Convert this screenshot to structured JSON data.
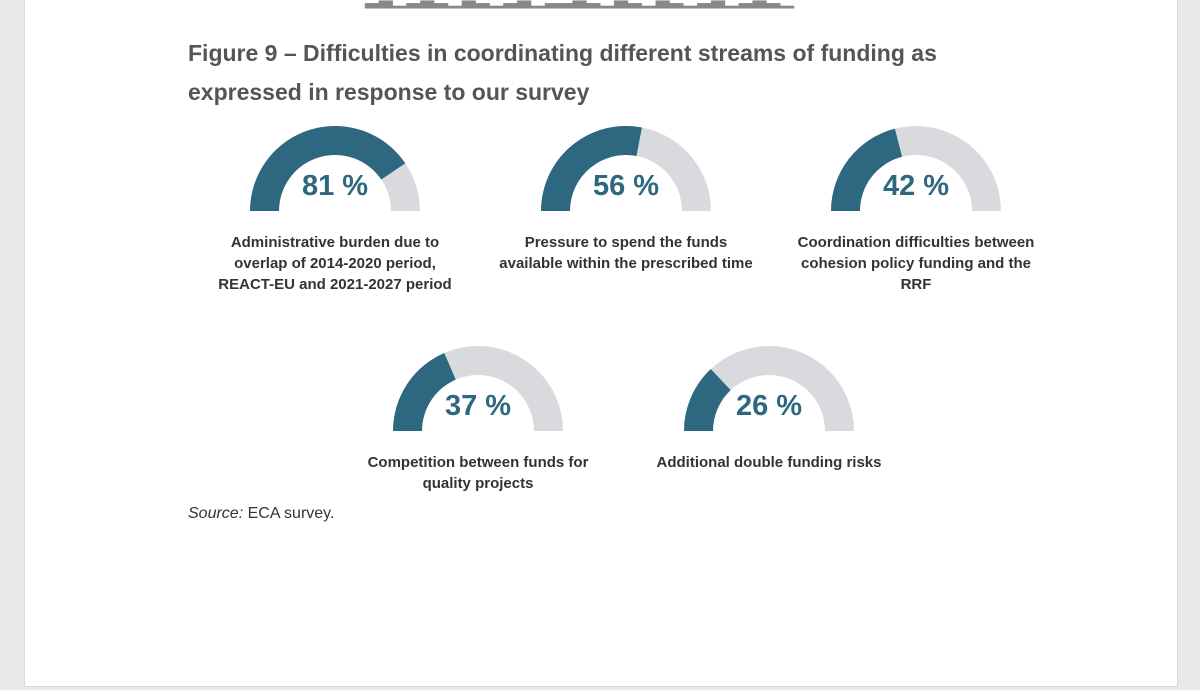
{
  "figure": {
    "title": "Figure 9 – Difficulties in coordinating different streams of funding as expressed in response to our survey",
    "source_label": "Source:",
    "source_text": " ECA survey."
  },
  "colors": {
    "fill": "#2e6780",
    "track": "#d9dadd",
    "value_text": "#2e6780"
  },
  "chart_data": {
    "type": "gauge",
    "unit": "%",
    "range": [
      0,
      100
    ],
    "items": [
      {
        "value": 81,
        "display": "81 %",
        "label": "Administrative burden due to overlap of 2014-2020 period, REACT-EU and 2021-2027 period"
      },
      {
        "value": 56,
        "display": "56 %",
        "label": "Pressure to spend the funds available within the prescribed time"
      },
      {
        "value": 42,
        "display": "42 %",
        "label": "Coordination difficulties between cohesion policy funding and the RRF"
      },
      {
        "value": 37,
        "display": "37 %",
        "label": "Competition between funds for quality projects"
      },
      {
        "value": 26,
        "display": "26 %",
        "label": "Additional double funding risks"
      }
    ]
  }
}
